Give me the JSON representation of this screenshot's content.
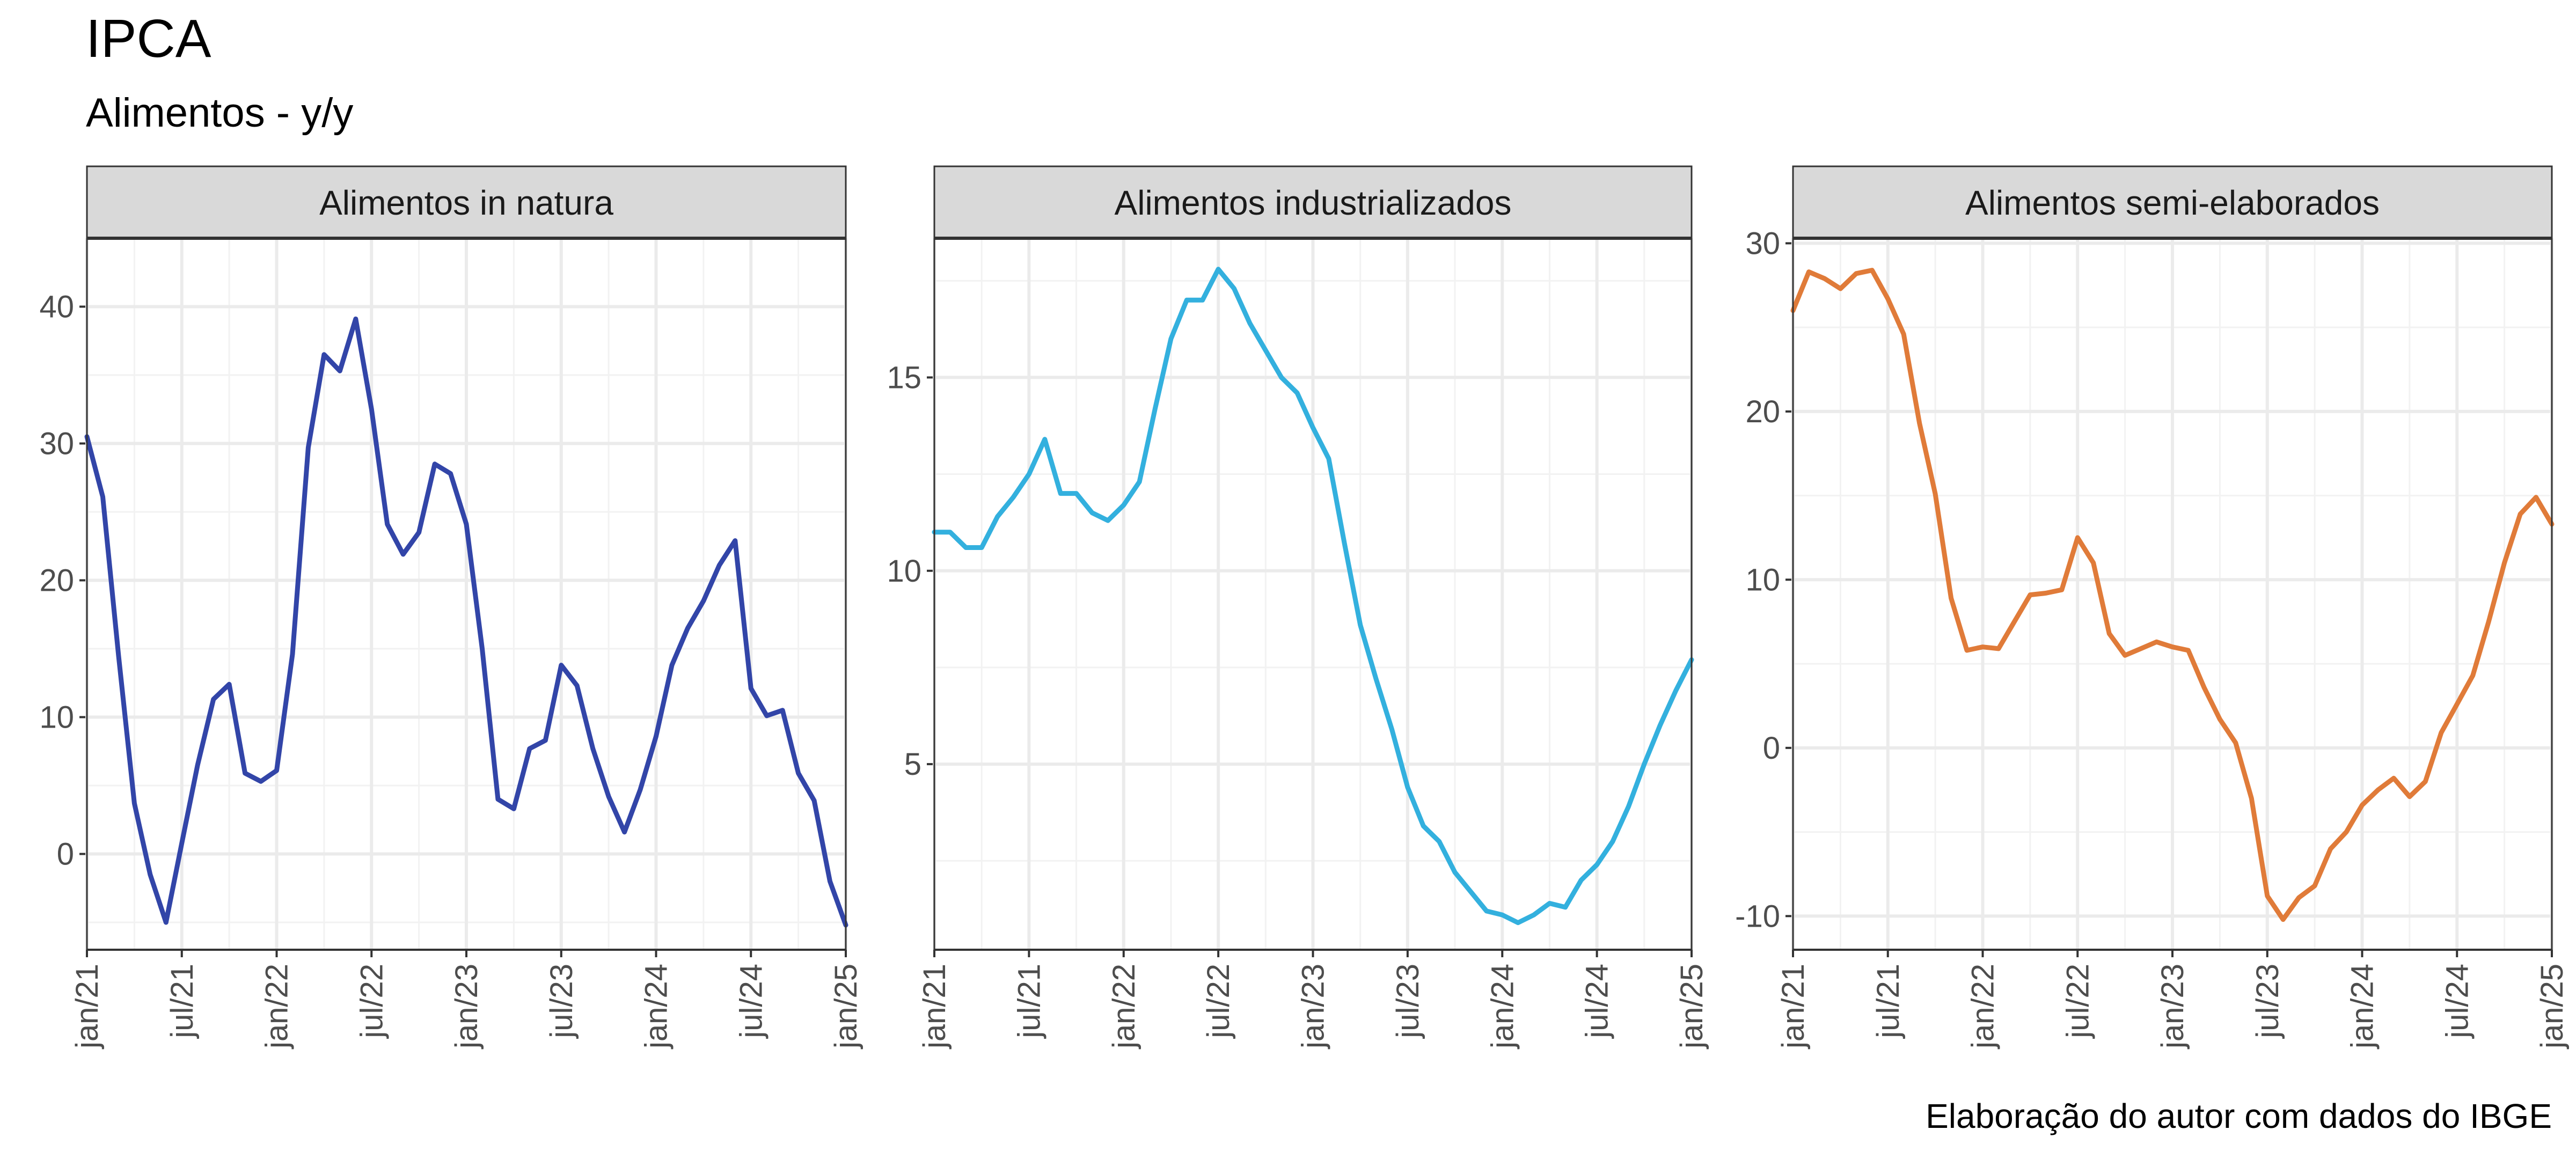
{
  "title": "IPCA",
  "subtitle": "Alimentos - y/y",
  "caption": "Elaboração do autor com dados do IBGE",
  "chart_data": [
    {
      "type": "line",
      "panel": "Alimentos in natura",
      "color": "#3245A8",
      "x_ticks": [
        "jan/21",
        "jul/21",
        "jan/22",
        "jul/22",
        "jan/23",
        "jul/23",
        "jan/24",
        "jul/24",
        "jan/25"
      ],
      "y_ticks": [
        0,
        10,
        20,
        30,
        40
      ],
      "ylim": [
        -7,
        45
      ],
      "xlim_months": [
        0,
        48
      ],
      "grid": true,
      "x": [
        0,
        1,
        2,
        3,
        4,
        5,
        6,
        7,
        8,
        9,
        10,
        11,
        12,
        13,
        14,
        15,
        16,
        17,
        18,
        19,
        20,
        21,
        22,
        23,
        24,
        25,
        26,
        27,
        28,
        29,
        30,
        31,
        32,
        33,
        34,
        35,
        36,
        37,
        38,
        39,
        40,
        41,
        42,
        43,
        44,
        45,
        46,
        47,
        48
      ],
      "values": [
        30.5,
        26.1,
        14.5,
        3.7,
        -1.5,
        -5.0,
        0.8,
        6.5,
        11.3,
        12.4,
        5.9,
        5.3,
        6.1,
        14.6,
        29.7,
        36.5,
        35.3,
        39.1,
        32.5,
        24.1,
        21.9,
        23.5,
        28.5,
        27.8,
        24.1,
        15.0,
        4.0,
        3.3,
        7.7,
        8.3,
        13.8,
        12.3,
        7.7,
        4.2,
        1.6,
        4.7,
        8.6,
        13.8,
        16.5,
        18.5,
        21.1,
        22.9,
        12.1,
        10.1,
        10.5,
        5.9,
        3.9,
        -2.0,
        -5.2
      ]
    },
    {
      "type": "line",
      "panel": "Alimentos industrializados",
      "color": "#33B0DE",
      "x_ticks": [
        "jan/21",
        "jul/21",
        "jan/22",
        "jul/22",
        "jan/23",
        "jul/23",
        "jan/24",
        "jul/24",
        "jan/25"
      ],
      "y_ticks": [
        5,
        10,
        15
      ],
      "ylim": [
        0.2,
        18.6
      ],
      "xlim_months": [
        0,
        48
      ],
      "grid": true,
      "x": [
        0,
        1,
        2,
        3,
        4,
        5,
        6,
        7,
        8,
        9,
        10,
        11,
        12,
        13,
        14,
        15,
        16,
        17,
        18,
        19,
        20,
        21,
        22,
        23,
        24,
        25,
        26,
        27,
        28,
        29,
        30,
        31,
        32,
        33,
        34,
        35,
        36,
        37,
        38,
        39,
        40,
        41,
        42,
        43,
        44,
        45,
        46,
        47,
        48
      ],
      "values": [
        11.0,
        11.0,
        10.6,
        10.6,
        11.4,
        11.9,
        12.5,
        13.4,
        12.0,
        12.0,
        11.5,
        11.3,
        11.7,
        12.3,
        14.2,
        16.0,
        17.0,
        17.0,
        17.8,
        17.3,
        16.4,
        15.7,
        15.0,
        14.6,
        13.7,
        12.9,
        10.7,
        8.6,
        7.2,
        5.9,
        4.4,
        3.4,
        3.0,
        2.2,
        1.7,
        1.2,
        1.1,
        0.9,
        1.1,
        1.4,
        1.3,
        2.0,
        2.4,
        3.0,
        3.9,
        5.0,
        6.0,
        6.9,
        7.7
      ]
    },
    {
      "type": "line",
      "panel": "Alimentos semi-elaborados",
      "color": "#E07B39",
      "x_ticks": [
        "jan/21",
        "jul/21",
        "jan/22",
        "jul/22",
        "jan/23",
        "jul/23",
        "jan/24",
        "jul/24",
        "jan/25"
      ],
      "y_ticks": [
        -10,
        0,
        10,
        20,
        30
      ],
      "ylim": [
        -12.0,
        30.3
      ],
      "xlim_months": [
        0,
        48
      ],
      "grid": true,
      "x": [
        0,
        1,
        2,
        3,
        4,
        5,
        6,
        7,
        8,
        9,
        10,
        11,
        12,
        13,
        14,
        15,
        16,
        17,
        18,
        19,
        20,
        21,
        22,
        23,
        24,
        25,
        26,
        27,
        28,
        29,
        30,
        31,
        32,
        33,
        34,
        35,
        36,
        37,
        38,
        39,
        40,
        41,
        42,
        43,
        44,
        45,
        46,
        47,
        48
      ],
      "values": [
        26.0,
        28.3,
        27.9,
        27.3,
        28.2,
        28.4,
        26.7,
        24.6,
        19.3,
        15.1,
        8.9,
        5.8,
        6.0,
        5.9,
        7.5,
        9.1,
        9.2,
        9.4,
        12.5,
        11.0,
        6.8,
        5.5,
        5.9,
        6.3,
        6.0,
        5.8,
        3.6,
        1.7,
        0.3,
        -3.0,
        -8.8,
        -10.2,
        -8.9,
        -8.2,
        -6.0,
        -5.0,
        -3.4,
        -2.5,
        -1.8,
        -2.9,
        -2.0,
        0.9,
        2.6,
        4.3,
        7.5,
        11.0,
        13.9,
        14.9,
        13.3
      ]
    }
  ]
}
